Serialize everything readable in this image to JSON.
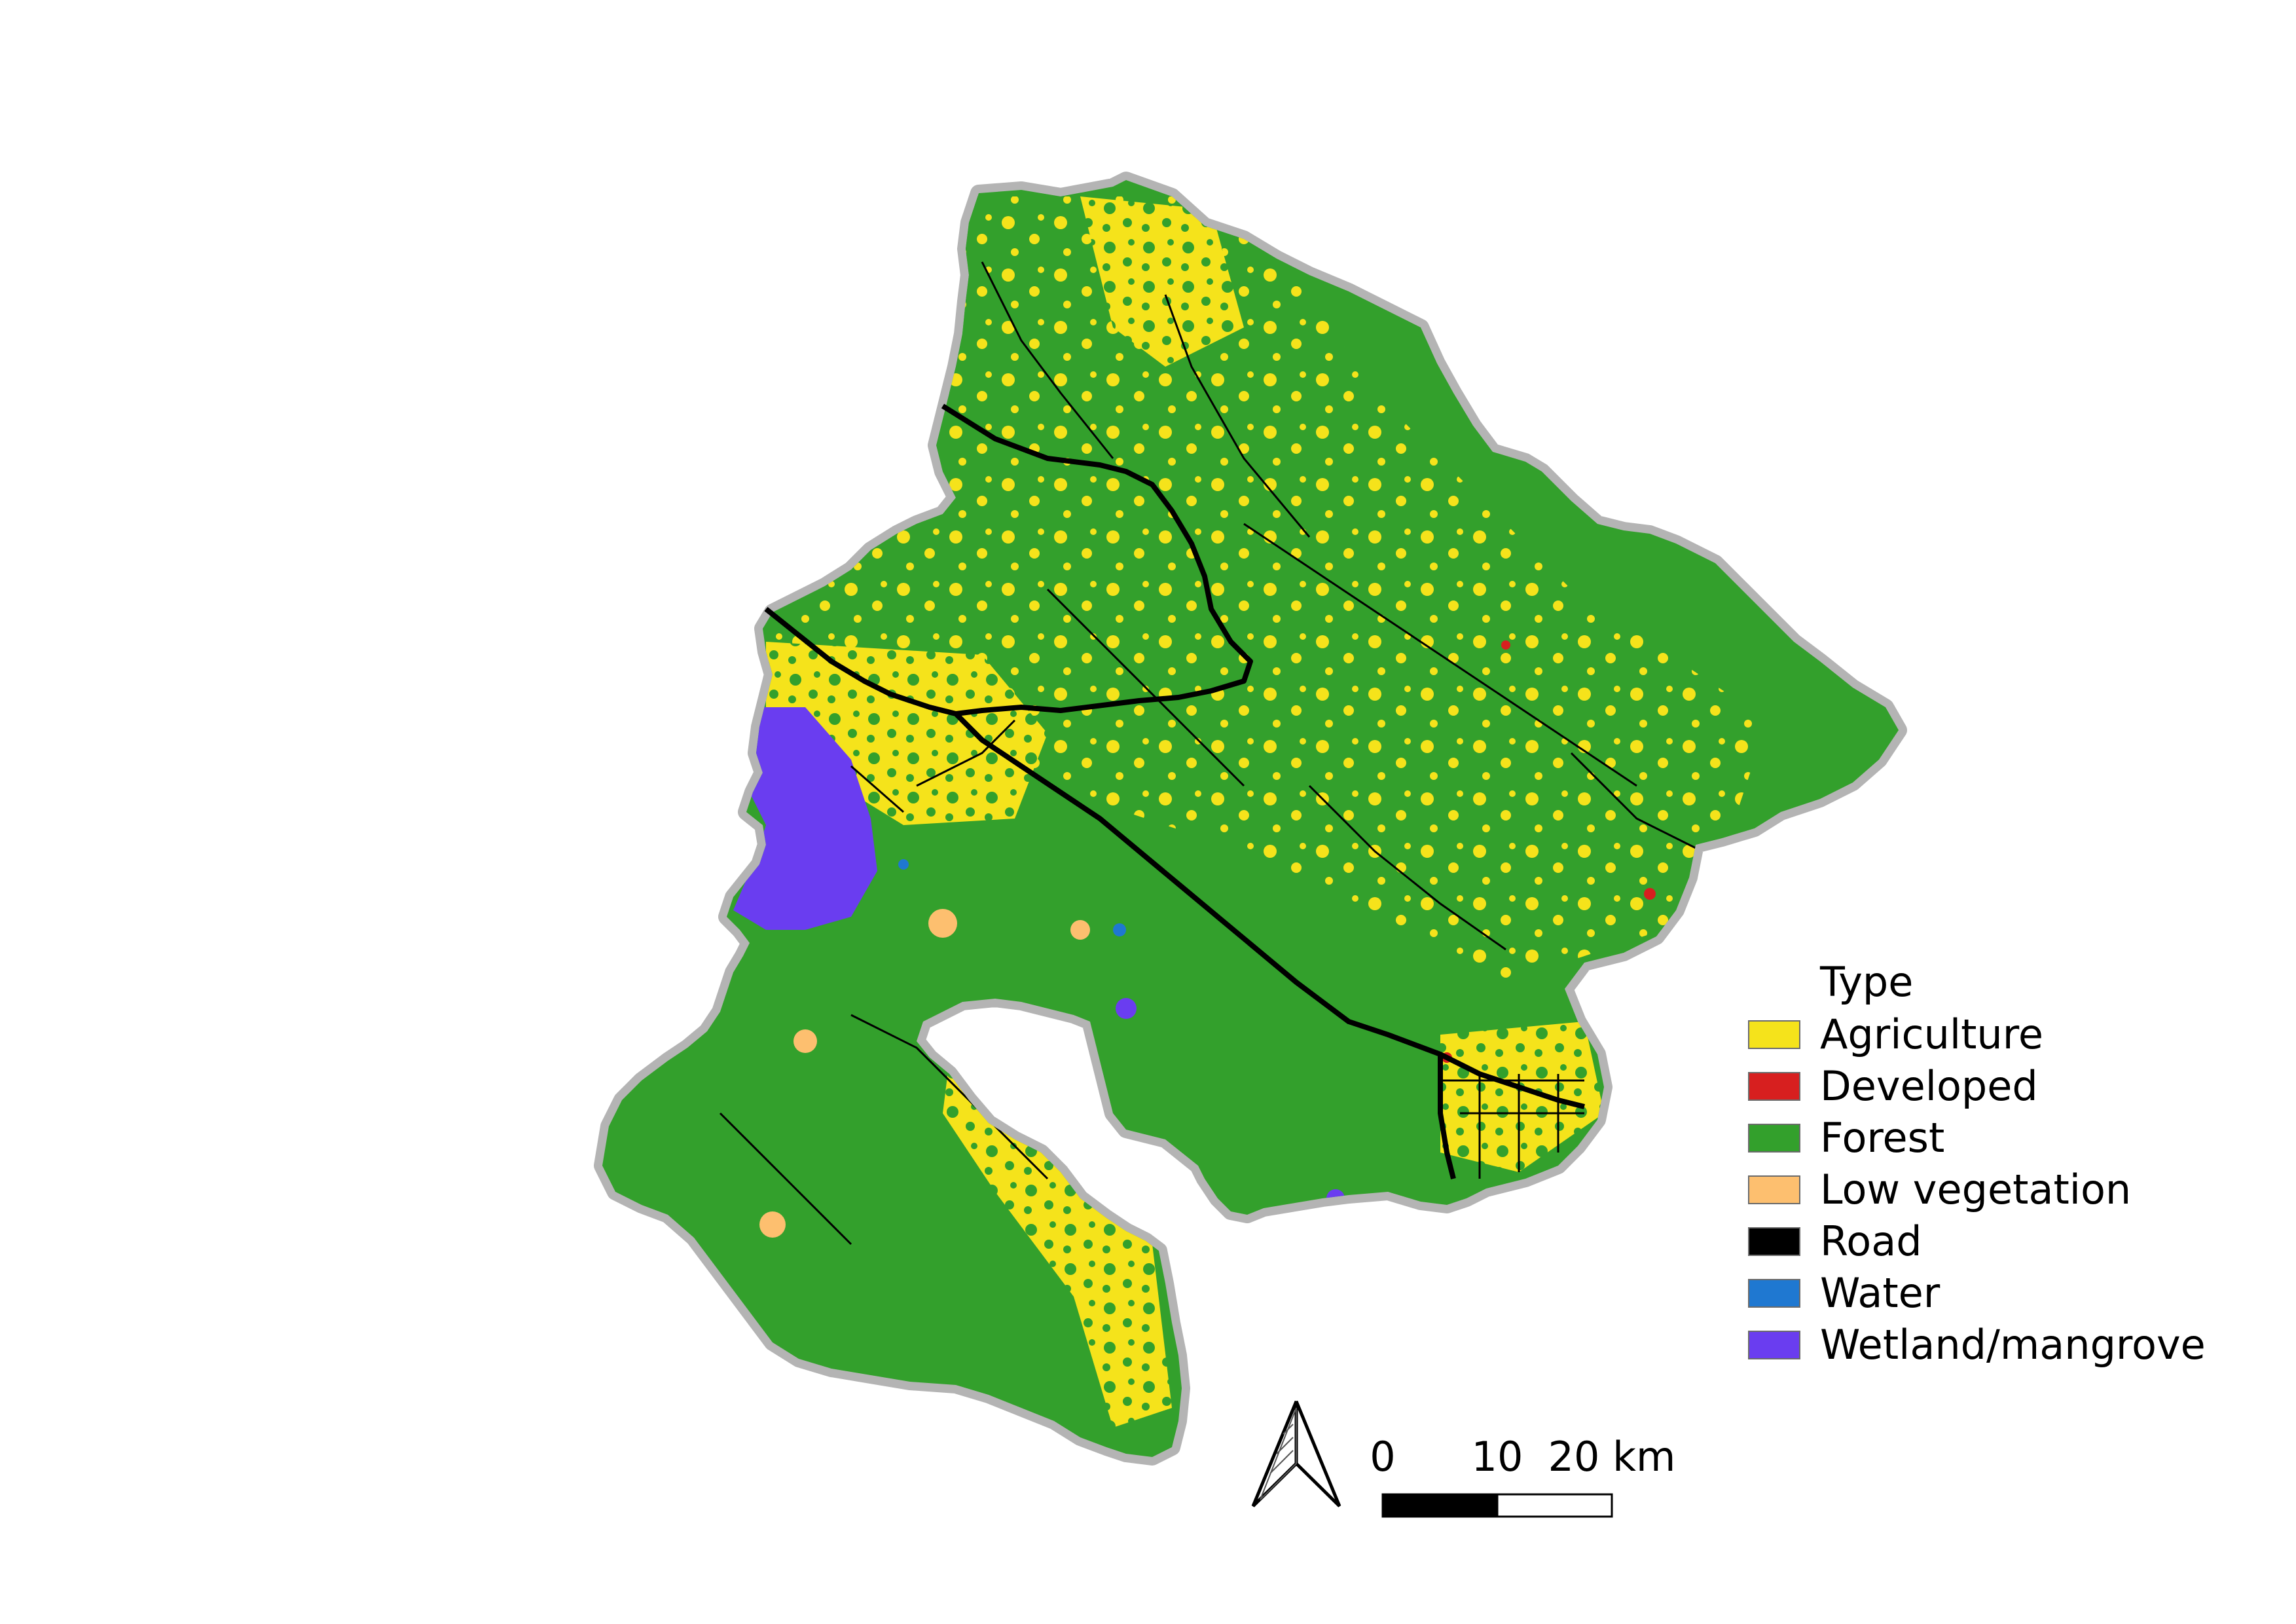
{
  "legend": {
    "title": "Type",
    "items": [
      {
        "label": "Agriculture",
        "color": "#f5e31b"
      },
      {
        "label": "Developed",
        "color": "#d71f1f"
      },
      {
        "label": "Forest",
        "color": "#33a02c"
      },
      {
        "label": "Low vegetation",
        "color": "#fdbf6f"
      },
      {
        "label": "Road",
        "color": "#000000"
      },
      {
        "label": "Water",
        "color": "#1f78d1"
      },
      {
        "label": "Wetland/mangrove",
        "color": "#6a3df0"
      }
    ]
  },
  "scale_bar": {
    "labels": [
      "0",
      "10",
      "20 km"
    ],
    "segment_km": 10
  },
  "north_arrow": {
    "icon": "north-arrow-icon"
  },
  "colors": {
    "background": "#ffffff",
    "boundary_halo": "#b4b4b4"
  }
}
